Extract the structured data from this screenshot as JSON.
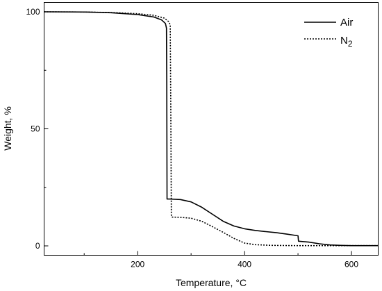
{
  "chart_data": {
    "type": "line",
    "title": "",
    "xlabel": "Temperature, °C",
    "ylabel": "Weight, %",
    "xlim": [
      25,
      650
    ],
    "ylim": [
      -4,
      104
    ],
    "x_ticks": [
      200,
      400,
      600
    ],
    "y_ticks": [
      0,
      50,
      100
    ],
    "grid": false,
    "legend_position": "top-right",
    "series": [
      {
        "name": "Air",
        "style": "solid",
        "color": "#000000",
        "points": [
          [
            25,
            100
          ],
          [
            100,
            99.9
          ],
          [
            150,
            99.6
          ],
          [
            200,
            98.8
          ],
          [
            230,
            97.8
          ],
          [
            245,
            96.5
          ],
          [
            252,
            95
          ],
          [
            254,
            93
          ],
          [
            254.5,
            70
          ],
          [
            255,
            20
          ],
          [
            260,
            20
          ],
          [
            280,
            19.8
          ],
          [
            300,
            18.8
          ],
          [
            320,
            16.5
          ],
          [
            340,
            13.5
          ],
          [
            360,
            10.5
          ],
          [
            380,
            8.5
          ],
          [
            400,
            7.3
          ],
          [
            420,
            6.6
          ],
          [
            440,
            6.1
          ],
          [
            460,
            5.6
          ],
          [
            480,
            5
          ],
          [
            500,
            4.3
          ],
          [
            501,
            2
          ],
          [
            520,
            1.6
          ],
          [
            540,
            0.9
          ],
          [
            560,
            0.4
          ],
          [
            580,
            0.2
          ],
          [
            600,
            0.1
          ],
          [
            650,
            0.1
          ]
        ]
      },
      {
        "name": "N",
        "name_subscript": "2",
        "style": "dotted",
        "color": "#000000",
        "points": [
          [
            25,
            100
          ],
          [
            100,
            99.9
          ],
          [
            150,
            99.7
          ],
          [
            200,
            99.2
          ],
          [
            230,
            98.5
          ],
          [
            250,
            97.3
          ],
          [
            258,
            95.8
          ],
          [
            261,
            94.5
          ],
          [
            262,
            60
          ],
          [
            263,
            13
          ],
          [
            264,
            12.3
          ],
          [
            280,
            12.2
          ],
          [
            300,
            11.8
          ],
          [
            320,
            10.5
          ],
          [
            340,
            8.2
          ],
          [
            360,
            5.8
          ],
          [
            380,
            3.2
          ],
          [
            400,
            1.2
          ],
          [
            420,
            0.5
          ],
          [
            450,
            0.2
          ],
          [
            500,
            0.1
          ],
          [
            650,
            0.1
          ]
        ]
      }
    ]
  }
}
